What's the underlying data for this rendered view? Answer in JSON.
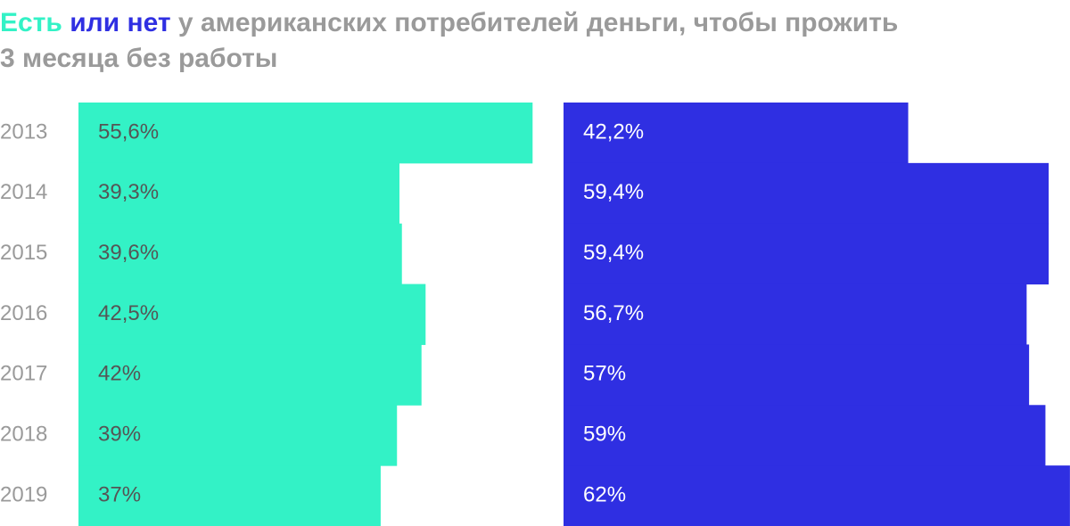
{
  "chart_data": {
    "type": "bar",
    "title_rest": "у американских потребителей деньги, чтобы прожить",
    "title_line2": "3 месяца без работы",
    "categories": [
      "2013",
      "2014",
      "2015",
      "2016",
      "2017",
      "2018",
      "2019"
    ],
    "series": [
      {
        "name": "Есть",
        "color": "#33f2c6",
        "values": [
          55.6,
          39.3,
          39.6,
          42.5,
          42,
          39,
          37
        ],
        "value_labels": [
          "55,6%",
          "39,3%",
          "39,6%",
          "42,5%",
          "42%",
          "39%",
          "37%"
        ]
      },
      {
        "name": "или нет",
        "color": "#2f2fe2",
        "values": [
          42.2,
          59.4,
          59.4,
          56.7,
          57,
          59,
          62
        ],
        "value_labels": [
          "42,2%",
          "59,4%",
          "59,4%",
          "56,7%",
          "57%",
          "59%",
          "62%"
        ]
      }
    ]
  }
}
